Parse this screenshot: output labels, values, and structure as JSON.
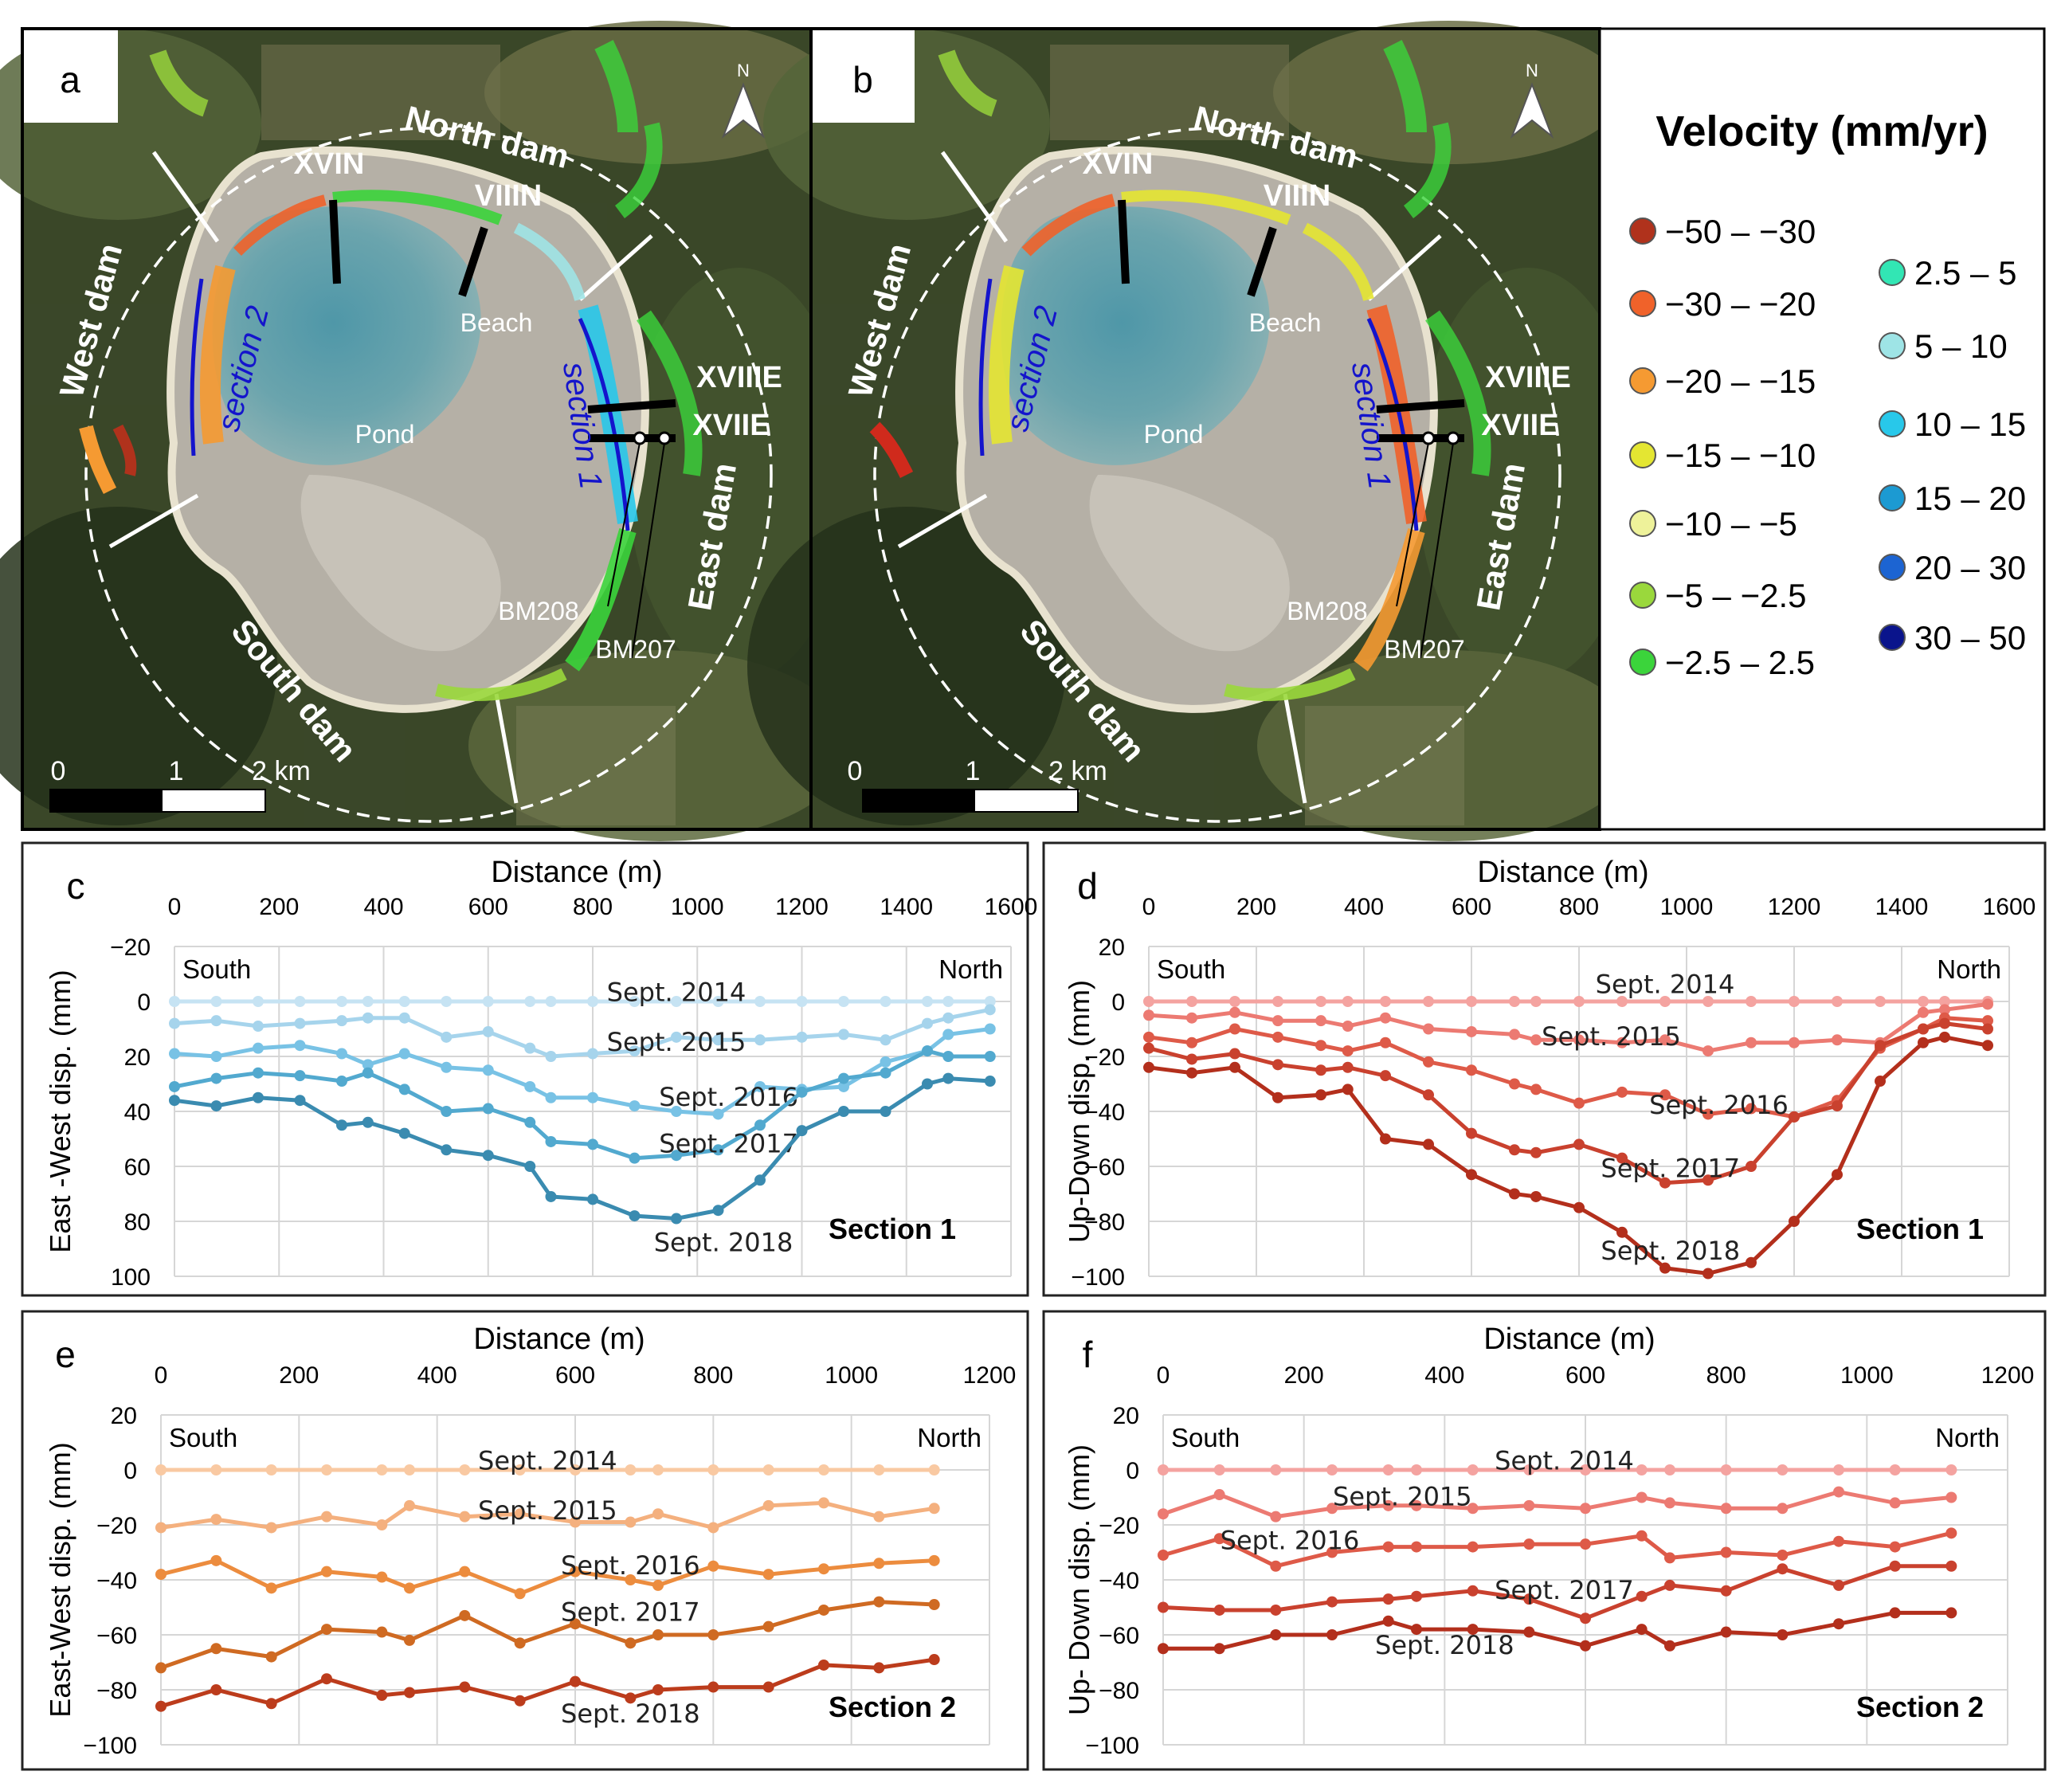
{
  "maps": {
    "a": {
      "panel_label": "a",
      "labels": {
        "north_dam": "North dam",
        "west_dam": "West dam",
        "south_dam": "South dam",
        "east_dam": "East dam",
        "xvin": "XVIN",
        "viiin": "VIIIN",
        "xviiie": "XVIIIE",
        "xviie": "XVIIE",
        "beach": "Beach",
        "pond": "Pond",
        "section1": "section 1",
        "section2": "section 2",
        "bm208": "BM208",
        "bm207": "BM207",
        "north_arrow": "N"
      },
      "scale_ticks": [
        "0",
        "1",
        "2 km"
      ]
    },
    "b": {
      "panel_label": "b",
      "labels": {
        "north_dam": "North dam",
        "west_dam": "West dam",
        "south_dam": "South dam",
        "east_dam": "East dam",
        "xvin": "XVIN",
        "viiin": "VIIIN",
        "xviiie": "XVIIIE",
        "xviie": "XVIIE",
        "beach": "Beach",
        "pond": "Pond",
        "section1": "section 1",
        "section2": "section 2",
        "bm208": "BM208",
        "bm207": "BM207",
        "north_arrow": "N"
      },
      "scale_ticks": [
        "0",
        "1",
        "2 km"
      ]
    }
  },
  "legend": {
    "title": "Velocity (mm/yr)",
    "items": [
      {
        "label": "−50 – −30",
        "color": "#b0321c"
      },
      {
        "label": "−30 – −20",
        "color": "#f0622a"
      },
      {
        "label": "−20 – −15",
        "color": "#f59a32"
      },
      {
        "label": "−15 – −10",
        "color": "#e4e632"
      },
      {
        "label": "−10 – −5",
        "color": "#eef29a"
      },
      {
        "label": "−5 – −2.5",
        "color": "#9ad83c"
      },
      {
        "label": "−2.5 – 2.5",
        "color": "#3bd43b"
      },
      {
        "label": "2.5 – 5",
        "color": "#32e6b4"
      },
      {
        "label": "5 – 10",
        "color": "#9ee4e6"
      },
      {
        "label": "10 – 15",
        "color": "#28c8ea"
      },
      {
        "label": "15 – 20",
        "color": "#1c9ad2"
      },
      {
        "label": "20 – 30",
        "color": "#1c64d2"
      },
      {
        "label": "30 – 50",
        "color": "#0a148c"
      }
    ]
  },
  "chart_data": [
    {
      "id": "c",
      "panel_label": "c",
      "type": "line",
      "title": "Section 1",
      "xlabel": "Distance (m)",
      "ylabel": "East -West disp. (mm)",
      "xlim": [
        0,
        1600
      ],
      "ylim": [
        -20,
        100
      ],
      "y_inverted": true,
      "xticks": [
        0,
        200,
        400,
        600,
        800,
        1000,
        1200,
        1400,
        1600
      ],
      "yticks": [
        -20,
        0,
        20,
        40,
        60,
        80,
        100
      ],
      "ytick_labels": [
        "−20",
        "0",
        "20",
        "40",
        "60",
        "80",
        "100"
      ],
      "annotations": {
        "left": "South",
        "right": "North"
      },
      "x": [
        0,
        80,
        160,
        240,
        320,
        370,
        440,
        520,
        600,
        680,
        720,
        800,
        880,
        960,
        1040,
        1120,
        1200,
        1280,
        1360,
        1440,
        1480,
        1560
      ],
      "series": [
        {
          "name": "Sept. 2014",
          "color": "#c6e3f3",
          "values": [
            0,
            0,
            0,
            0,
            0,
            0,
            0,
            0,
            0,
            0,
            0,
            0,
            0,
            0,
            0,
            0,
            0,
            0,
            0,
            0,
            0,
            0
          ]
        },
        {
          "name": "Sept. 2015",
          "color": "#a6d4ec",
          "values": [
            8,
            7,
            9,
            8,
            7,
            6,
            6,
            13,
            11,
            17,
            20,
            19,
            18,
            13,
            14,
            14,
            13,
            12,
            14,
            8,
            6,
            3
          ]
        },
        {
          "name": "Sept. 2016",
          "color": "#78c2e5",
          "values": [
            19,
            20,
            17,
            16,
            19,
            23,
            19,
            24,
            25,
            31,
            35,
            35,
            38,
            40,
            41,
            31,
            32,
            31,
            22,
            18,
            12,
            10
          ]
        },
        {
          "name": "Sept. 2017",
          "color": "#52a9cf",
          "values": [
            31,
            28,
            26,
            27,
            29,
            26,
            32,
            40,
            39,
            44,
            51,
            52,
            57,
            56,
            54,
            45,
            33,
            28,
            26,
            18,
            20,
            20
          ]
        },
        {
          "name": "Sept. 2018",
          "color": "#3a8bb0",
          "values": [
            36,
            38,
            35,
            36,
            45,
            44,
            48,
            54,
            56,
            60,
            71,
            72,
            78,
            79,
            76,
            65,
            47,
            40,
            40,
            30,
            28,
            29
          ]
        }
      ],
      "label_positions": {
        "Sept. 2014": [
          960,
          -3
        ],
        "Sept. 2015": [
          960,
          15
        ],
        "Sept. 2016": [
          1060,
          35
        ],
        "Sept. 2017": [
          1060,
          52
        ],
        "Sept. 2018": [
          1050,
          88
        ]
      }
    },
    {
      "id": "d",
      "panel_label": "d",
      "type": "line",
      "title": "Section 1",
      "xlabel": "Distance (m)",
      "ylabel": "Up-Down disp. (mm)",
      "xlim": [
        0,
        1600
      ],
      "ylim": [
        -100,
        20
      ],
      "y_inverted": false,
      "xticks": [
        0,
        200,
        400,
        600,
        800,
        1000,
        1200,
        1400,
        1600
      ],
      "yticks": [
        20,
        0,
        -20,
        -40,
        -60,
        -80,
        -100
      ],
      "ytick_labels": [
        "20",
        "0",
        "−20",
        "−40",
        "−60",
        "−80",
        "−100"
      ],
      "annotations": {
        "left": "South",
        "right": "North"
      },
      "x": [
        0,
        80,
        160,
        240,
        320,
        370,
        440,
        520,
        600,
        680,
        720,
        800,
        880,
        960,
        1040,
        1120,
        1200,
        1280,
        1360,
        1440,
        1480,
        1560
      ],
      "series": [
        {
          "name": "Sept. 2014",
          "color": "#f4a3a0",
          "values": [
            0,
            0,
            0,
            0,
            0,
            0,
            0,
            0,
            0,
            0,
            0,
            0,
            0,
            0,
            0,
            0,
            0,
            0,
            0,
            0,
            0,
            0
          ]
        },
        {
          "name": "Sept. 2015",
          "color": "#ec7a72",
          "values": [
            -5,
            -6,
            -4,
            -7,
            -7,
            -9,
            -6,
            -10,
            -11,
            -12,
            -14,
            -14,
            -15,
            -14,
            -18,
            -15,
            -15,
            -14,
            -15,
            -4,
            -3,
            -1
          ]
        },
        {
          "name": "Sept. 2016",
          "color": "#de5a48",
          "values": [
            -13,
            -15,
            -10,
            -13,
            -16,
            -18,
            -15,
            -22,
            -25,
            -30,
            -32,
            -37,
            -33,
            -34,
            -41,
            -39,
            -42,
            -36,
            -17,
            -10,
            -6,
            -7
          ]
        },
        {
          "name": "Sept. 2017",
          "color": "#c9412e",
          "values": [
            -17,
            -21,
            -19,
            -23,
            -25,
            -24,
            -27,
            -34,
            -48,
            -54,
            -55,
            -52,
            -57,
            -66,
            -65,
            -60,
            -42,
            -38,
            -16,
            -10,
            -8,
            -10
          ]
        },
        {
          "name": "Sept. 2018",
          "color": "#b32f1c",
          "values": [
            -24,
            -26,
            -24,
            -35,
            -34,
            -32,
            -50,
            -52,
            -63,
            -70,
            -71,
            -75,
            -84,
            -97,
            -99,
            -95,
            -80,
            -63,
            -29,
            -15,
            -13,
            -16
          ]
        }
      ],
      "label_positions": {
        "Sept. 2014": [
          960,
          6
        ],
        "Sept. 2015": [
          860,
          -13
        ],
        "Sept. 2016": [
          1060,
          -38
        ],
        "Sept. 2017": [
          970,
          -61
        ],
        "Sept. 2018": [
          970,
          -91
        ]
      }
    },
    {
      "id": "e",
      "panel_label": "e",
      "type": "line",
      "title": "Section 2",
      "xlabel": "Distance (m)",
      "ylabel": "East-West disp. (mm)",
      "xlim": [
        0,
        1200
      ],
      "ylim": [
        -100,
        20
      ],
      "y_inverted": false,
      "xticks": [
        0,
        200,
        400,
        600,
        800,
        1000,
        1200
      ],
      "yticks": [
        20,
        0,
        -20,
        -40,
        -60,
        -80,
        -100
      ],
      "ytick_labels": [
        "20",
        "0",
        "−20",
        "−40",
        "−60",
        "−80",
        "−100"
      ],
      "annotations": {
        "left": "South",
        "right": "North"
      },
      "x": [
        0,
        80,
        160,
        240,
        320,
        360,
        440,
        520,
        600,
        680,
        720,
        800,
        880,
        960,
        1040,
        1120
      ],
      "series": [
        {
          "name": "Sept. 2014",
          "color": "#f9c9a2",
          "values": [
            0,
            0,
            0,
            0,
            0,
            0,
            0,
            0,
            0,
            0,
            0,
            0,
            0,
            0,
            0,
            0
          ]
        },
        {
          "name": "Sept. 2015",
          "color": "#f4b07e",
          "values": [
            -21,
            -18,
            -21,
            -17,
            -20,
            -13,
            -17,
            -16,
            -19,
            -19,
            -16,
            -21,
            -13,
            -12,
            -17,
            -14
          ]
        },
        {
          "name": "Sept. 2016",
          "color": "#ec8c3e",
          "values": [
            -38,
            -33,
            -43,
            -37,
            -39,
            -43,
            -37,
            -45,
            -37,
            -40,
            -42,
            -35,
            -38,
            -36,
            -34,
            -33
          ]
        },
        {
          "name": "Sept. 2017",
          "color": "#cf6a22",
          "values": [
            -72,
            -65,
            -68,
            -58,
            -59,
            -62,
            -53,
            -63,
            -56,
            -63,
            -60,
            -60,
            -57,
            -51,
            -48,
            -49
          ]
        },
        {
          "name": "Sept. 2018",
          "color": "#bc3c1c",
          "values": [
            -86,
            -80,
            -85,
            -76,
            -82,
            -81,
            -79,
            -84,
            -77,
            -83,
            -80,
            -79,
            -79,
            -71,
            -72,
            -69
          ]
        }
      ],
      "label_positions": {
        "Sept. 2014": [
          560,
          3
        ],
        "Sept. 2015": [
          560,
          -15
        ],
        "Sept. 2016": [
          680,
          -35
        ],
        "Sept. 2017": [
          680,
          -52
        ],
        "Sept. 2018": [
          680,
          -89
        ]
      }
    },
    {
      "id": "f",
      "panel_label": "f",
      "type": "line",
      "title": "Section 2",
      "xlabel": "Distance (m)",
      "ylabel": "Up- Down disp. (mm)",
      "xlim": [
        0,
        1200
      ],
      "ylim": [
        -100,
        20
      ],
      "y_inverted": false,
      "xticks": [
        0,
        200,
        400,
        600,
        800,
        1000,
        1200
      ],
      "yticks": [
        20,
        0,
        -20,
        -40,
        -60,
        -80,
        -100
      ],
      "ytick_labels": [
        "20",
        "0",
        "−20",
        "−40",
        "−60",
        "−80",
        "−100"
      ],
      "annotations": {
        "left": "South",
        "right": "North"
      },
      "x": [
        0,
        80,
        160,
        240,
        320,
        360,
        440,
        520,
        600,
        680,
        720,
        800,
        880,
        960,
        1040,
        1120
      ],
      "series": [
        {
          "name": "Sept. 2014",
          "color": "#f4a3a0",
          "values": [
            0,
            0,
            0,
            0,
            0,
            0,
            0,
            0,
            0,
            0,
            0,
            0,
            0,
            0,
            0,
            0
          ]
        },
        {
          "name": "Sept. 2015",
          "color": "#ec7a72",
          "values": [
            -16,
            -9,
            -17,
            -14,
            -13,
            -13,
            -14,
            -13,
            -14,
            -10,
            -12,
            -14,
            -14,
            -8,
            -12,
            -10
          ]
        },
        {
          "name": "Sept. 2016",
          "color": "#de5a48",
          "values": [
            -31,
            -25,
            -35,
            -30,
            -28,
            -28,
            -28,
            -27,
            -27,
            -24,
            -32,
            -30,
            -31,
            -26,
            -28,
            -23
          ]
        },
        {
          "name": "Sept. 2017",
          "color": "#c9412e",
          "values": [
            -50,
            -51,
            -51,
            -48,
            -47,
            -46,
            -44,
            -47,
            -54,
            -46,
            -42,
            -44,
            -36,
            -42,
            -35,
            -35
          ]
        },
        {
          "name": "Sept. 2018",
          "color": "#b32f1c",
          "values": [
            -65,
            -65,
            -60,
            -60,
            -55,
            -58,
            -58,
            -59,
            -64,
            -58,
            -64,
            -59,
            -60,
            -56,
            -52,
            -52
          ]
        }
      ],
      "label_positions": {
        "Sept. 2014": [
          570,
          3
        ],
        "Sept. 2015": [
          340,
          -10
        ],
        "Sept. 2016": [
          180,
          -26
        ],
        "Sept. 2017": [
          570,
          -44
        ],
        "Sept. 2018": [
          400,
          -64
        ]
      }
    }
  ]
}
